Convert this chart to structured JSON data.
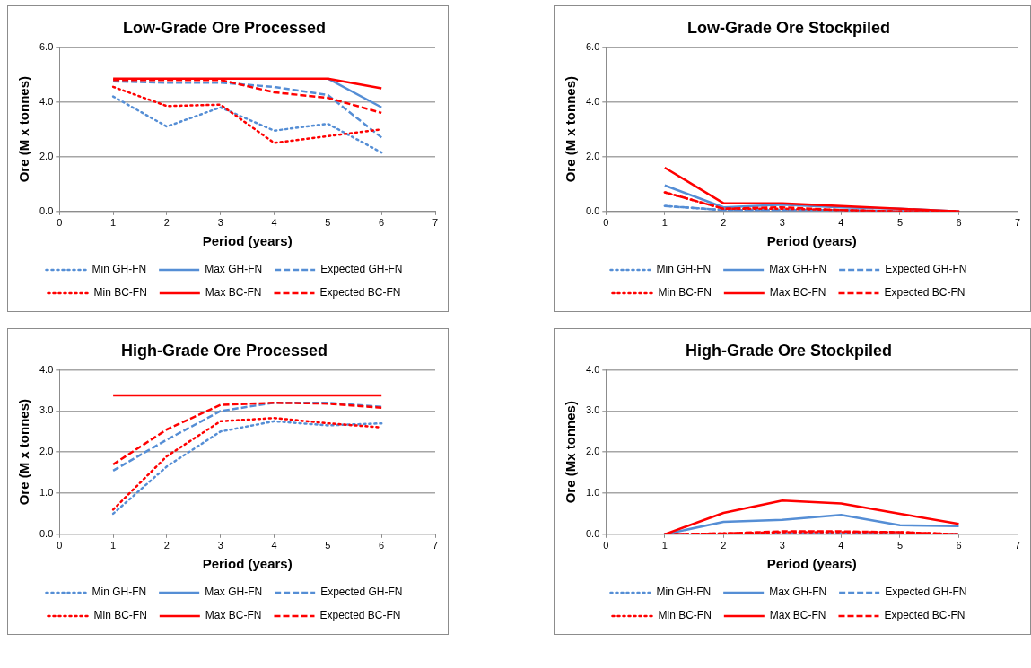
{
  "chart_data": [
    {
      "type": "line",
      "title": "Low-Grade Ore Processed",
      "xlabel": "Period (years)",
      "ylabel": "Ore (M x tonnes)",
      "x": [
        1,
        2,
        3,
        4,
        5,
        6
      ],
      "xlim": [
        0,
        7
      ],
      "xticks": [
        0,
        1,
        2,
        3,
        4,
        5,
        6,
        7
      ],
      "ylim": [
        0,
        6
      ],
      "yticks": [
        {
          "value": 0,
          "label": "0.0"
        },
        {
          "value": 2,
          "label": "2.0"
        },
        {
          "value": 4,
          "label": "4.0"
        },
        {
          "value": 6,
          "label": "6.0"
        }
      ],
      "grid": "y",
      "legend": "bottom",
      "marker": "none",
      "series": [
        {
          "name": "Min GH-FN",
          "color": "#558ed5",
          "line_style": "dotted",
          "values": [
            4.2,
            3.1,
            3.8,
            2.95,
            3.2,
            2.15
          ]
        },
        {
          "name": "Max GH-FN",
          "color": "#558ed5",
          "line_style": "solid",
          "values": [
            null,
            null,
            null,
            null,
            4.85,
            3.8
          ]
        },
        {
          "name": "Expected GH-FN",
          "color": "#558ed5",
          "line_style": "dashed",
          "values": [
            4.75,
            4.7,
            4.7,
            4.55,
            4.25,
            2.7
          ]
        },
        {
          "name": "Min BC-FN",
          "color": "#ff0000",
          "line_style": "dotted",
          "values": [
            4.55,
            3.85,
            3.9,
            2.5,
            2.75,
            3.0
          ]
        },
        {
          "name": "Max BC-FN",
          "color": "#ff0000",
          "line_style": "solid",
          "values": [
            4.85,
            4.85,
            4.85,
            4.85,
            4.85,
            4.5
          ]
        },
        {
          "name": "Expected BC-FN",
          "color": "#ff0000",
          "line_style": "dashed",
          "values": [
            4.8,
            4.8,
            4.8,
            4.35,
            4.15,
            3.6
          ]
        }
      ]
    },
    {
      "type": "line",
      "title": "Low-Grade Ore Stockpiled",
      "xlabel": "Period (years)",
      "ylabel": "Ore (M x tonnes)",
      "x": [
        1,
        2,
        3,
        4,
        5,
        6
      ],
      "xlim": [
        0,
        7
      ],
      "xticks": [
        0,
        1,
        2,
        3,
        4,
        5,
        6,
        7
      ],
      "ylim": [
        0,
        6
      ],
      "yticks": [
        {
          "value": 0,
          "label": "0.0"
        },
        {
          "value": 2,
          "label": "2.0"
        },
        {
          "value": 4,
          "label": "4.0"
        },
        {
          "value": 6,
          "label": "6.0"
        }
      ],
      "grid": "y",
      "legend": "bottom",
      "marker": "none",
      "series": [
        {
          "name": "Min GH-FN",
          "color": "#558ed5",
          "line_style": "dotted",
          "values": [
            0.2,
            0.05,
            0.05,
            0.05,
            0,
            0
          ]
        },
        {
          "name": "Max GH-FN",
          "color": "#558ed5",
          "line_style": "solid",
          "values": [
            0.95,
            0.15,
            0.25,
            0.15,
            0.1,
            0
          ]
        },
        {
          "name": "Expected GH-FN",
          "color": "#558ed5",
          "line_style": "dashed",
          "values": [
            0.2,
            0.05,
            0.05,
            0.05,
            0,
            0
          ]
        },
        {
          "name": "Min BC-FN",
          "color": "#ff0000",
          "line_style": "dotted",
          "values": [
            0.7,
            0.1,
            0.1,
            0.05,
            0,
            0
          ]
        },
        {
          "name": "Max BC-FN",
          "color": "#ff0000",
          "line_style": "solid",
          "values": [
            1.6,
            0.3,
            0.3,
            0.2,
            0.1,
            0
          ]
        },
        {
          "name": "Expected BC-FN",
          "color": "#ff0000",
          "line_style": "dashed",
          "values": [
            0.7,
            0.1,
            0.15,
            0.05,
            0,
            0
          ]
        }
      ]
    },
    {
      "type": "line",
      "title": "High-Grade Ore Processed",
      "xlabel": "Period (years)",
      "ylabel": "Ore (M x tonnes)",
      "x": [
        1,
        2,
        3,
        4,
        5,
        6
      ],
      "xlim": [
        0,
        7
      ],
      "xticks": [
        0,
        1,
        2,
        3,
        4,
        5,
        6,
        7
      ],
      "ylim": [
        0,
        4
      ],
      "yticks": [
        {
          "value": 0,
          "label": "0.0"
        },
        {
          "value": 1,
          "label": "1.0"
        },
        {
          "value": 2,
          "label": "2.0"
        },
        {
          "value": 3,
          "label": "3.0"
        },
        {
          "value": 4,
          "label": "4.0"
        }
      ],
      "grid": "y",
      "legend": "bottom",
      "marker": "none",
      "series": [
        {
          "name": "Min GH-FN",
          "color": "#558ed5",
          "line_style": "dotted",
          "values": [
            0.5,
            1.65,
            2.5,
            2.75,
            2.65,
            2.7
          ]
        },
        {
          "name": "Max GH-FN",
          "color": "#558ed5",
          "line_style": "solid",
          "values": [
            null,
            null,
            null,
            null,
            null,
            null
          ]
        },
        {
          "name": "Expected GH-FN",
          "color": "#558ed5",
          "line_style": "dashed",
          "values": [
            1.55,
            2.3,
            3.0,
            3.2,
            3.2,
            3.1
          ]
        },
        {
          "name": "Min BC-FN",
          "color": "#ff0000",
          "line_style": "dotted",
          "values": [
            0.6,
            1.9,
            2.75,
            2.83,
            2.7,
            2.6
          ]
        },
        {
          "name": "Max BC-FN",
          "color": "#ff0000",
          "line_style": "solid",
          "values": [
            3.38,
            3.38,
            3.38,
            3.38,
            3.38,
            3.38
          ]
        },
        {
          "name": "Expected BC-FN",
          "color": "#ff0000",
          "line_style": "dashed",
          "values": [
            1.7,
            2.55,
            3.15,
            3.2,
            3.18,
            3.08
          ]
        }
      ]
    },
    {
      "type": "line",
      "title": "High-Grade Ore Stockpiled",
      "xlabel": "Period (years)",
      "ylabel": "Ore (Mx tonnes)",
      "x": [
        1,
        2,
        3,
        4,
        5,
        6
      ],
      "xlim": [
        0,
        7
      ],
      "xticks": [
        0,
        1,
        2,
        3,
        4,
        5,
        6,
        7
      ],
      "ylim": [
        0,
        4
      ],
      "yticks": [
        {
          "value": 0,
          "label": "0.0"
        },
        {
          "value": 1,
          "label": "1.0"
        },
        {
          "value": 2,
          "label": "2.0"
        },
        {
          "value": 3,
          "label": "3.0"
        },
        {
          "value": 4,
          "label": "4.0"
        }
      ],
      "grid": "y",
      "legend": "bottom",
      "marker": "none",
      "series": [
        {
          "name": "Min GH-FN",
          "color": "#558ed5",
          "line_style": "dotted",
          "values": [
            0,
            0,
            0,
            0,
            0,
            0
          ]
        },
        {
          "name": "Max GH-FN",
          "color": "#558ed5",
          "line_style": "solid",
          "values": [
            0,
            0.3,
            0.35,
            0.47,
            0.22,
            0.2
          ]
        },
        {
          "name": "Expected GH-FN",
          "color": "#558ed5",
          "line_style": "dashed",
          "values": [
            0,
            0,
            0.02,
            0.02,
            0.02,
            0
          ]
        },
        {
          "name": "Min BC-FN",
          "color": "#ff0000",
          "line_style": "dotted",
          "values": [
            0,
            0.02,
            0.05,
            0.05,
            0.05,
            0
          ]
        },
        {
          "name": "Max BC-FN",
          "color": "#ff0000",
          "line_style": "solid",
          "values": [
            0,
            0.52,
            0.82,
            0.75,
            0.5,
            0.25
          ]
        },
        {
          "name": "Expected BC-FN",
          "color": "#ff0000",
          "line_style": "dashed",
          "values": [
            0,
            0.02,
            0.07,
            0.07,
            0.05,
            0
          ]
        }
      ]
    }
  ]
}
